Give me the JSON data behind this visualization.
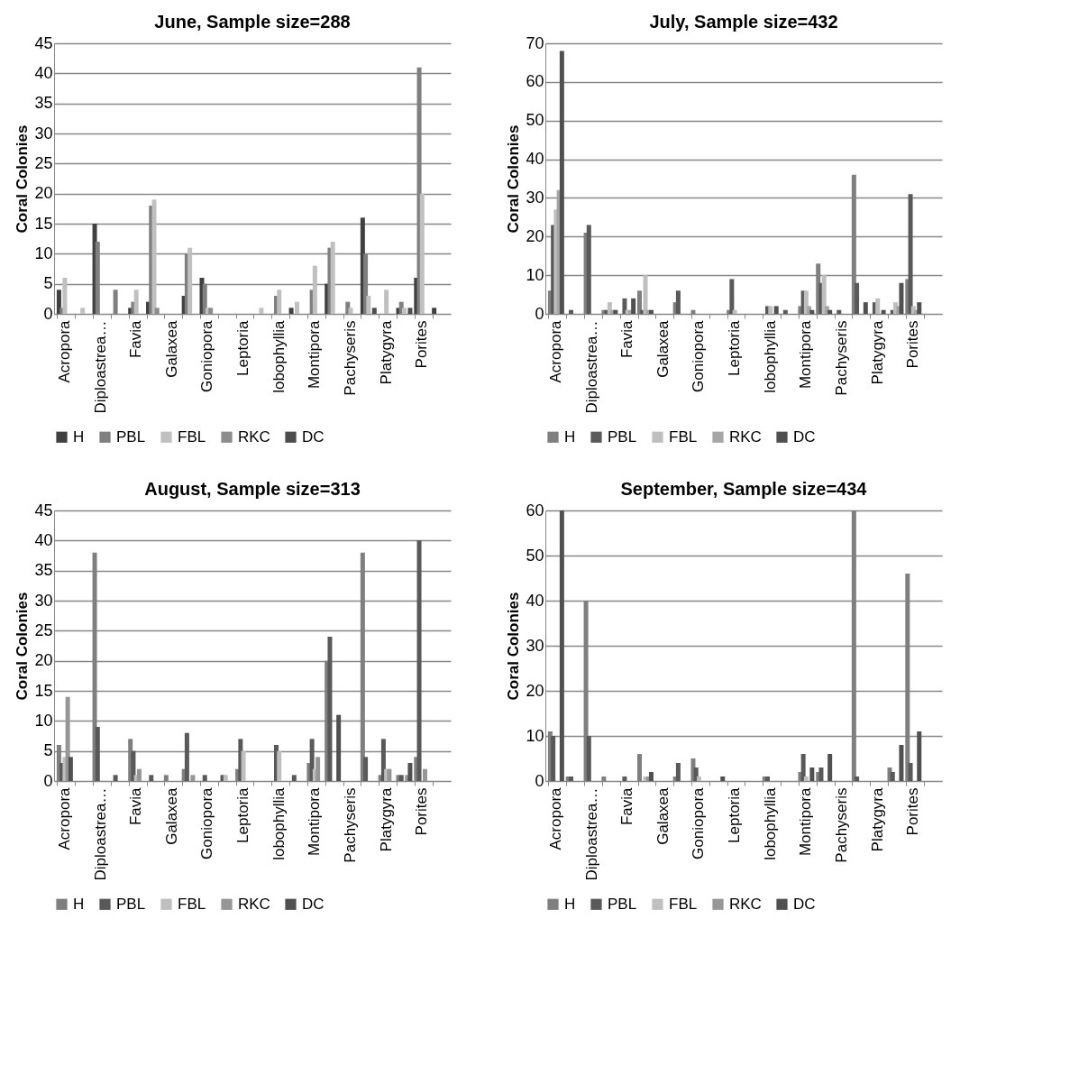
{
  "chart_data": [
    {
      "type": "bar",
      "title": "June, Sample size=288",
      "ylabel": "Coral Colonies",
      "categories": [
        "Acropora",
        null,
        "Diploastrea…",
        null,
        "Favia",
        null,
        "Galaxea",
        null,
        "Goniopora",
        null,
        "Leptoria",
        null,
        "lobophyllia",
        null,
        "Montipora",
        null,
        "Pachyseris",
        null,
        "Platygyra",
        null,
        "Porites",
        null
      ],
      "ylim": [
        0,
        45
      ],
      "yticks": [
        0,
        5,
        10,
        15,
        20,
        25,
        30,
        35,
        40,
        45
      ],
      "grid": "y",
      "legend": "bottom",
      "series": [
        {
          "name": "H",
          "color": "#404040",
          "values": [
            4,
            0,
            15,
            0,
            1,
            2,
            0,
            3,
            6,
            0,
            0,
            0,
            0,
            1,
            0,
            5,
            0,
            16,
            0,
            1,
            6,
            1
          ]
        },
        {
          "name": "PBL",
          "color": "#7f7f7f",
          "values": [
            1,
            0,
            12,
            4,
            2,
            18,
            0,
            10,
            5,
            0,
            0,
            0,
            3,
            0,
            4,
            11,
            2,
            10,
            0,
            2,
            41,
            0
          ]
        },
        {
          "name": "FBL",
          "color": "#c0c0c0",
          "values": [
            6,
            1,
            0,
            0,
            4,
            19,
            0,
            11,
            1,
            0,
            0,
            1,
            4,
            2,
            8,
            12,
            1,
            3,
            4,
            1,
            20,
            0
          ]
        },
        {
          "name": "RKC",
          "color": "#8c8c8c",
          "values": [
            0,
            0,
            0,
            0,
            0,
            1,
            0,
            0,
            1,
            0,
            0,
            0,
            0,
            0,
            0,
            0,
            0,
            0,
            0,
            0,
            0,
            0
          ]
        },
        {
          "name": "DC",
          "color": "#4d4d4d",
          "values": [
            0,
            0,
            0,
            0,
            0,
            0,
            0,
            0,
            0,
            0,
            0,
            0,
            0,
            0,
            0,
            0,
            0,
            1,
            0,
            1,
            0,
            0
          ]
        }
      ]
    },
    {
      "type": "bar",
      "title": "July, Sample size=432",
      "ylabel": "Coral Colonies",
      "categories": [
        "Acropora",
        null,
        "Diploastrea…",
        null,
        "Favia",
        null,
        "Galaxea",
        null,
        "Goniopora",
        null,
        "Leptoria",
        null,
        "lobophyllia",
        null,
        "Montipora",
        null,
        "Pachyseris",
        null,
        "Platygyra",
        null,
        "Porites",
        null
      ],
      "ylim": [
        0,
        70
      ],
      "yticks": [
        0,
        10,
        20,
        30,
        40,
        50,
        60,
        70
      ],
      "grid": "y",
      "legend": "bottom",
      "series": [
        {
          "name": "H",
          "color": "#7f7f7f",
          "values": [
            6,
            0,
            21,
            1,
            0,
            6,
            0,
            3,
            1,
            0,
            1,
            0,
            0,
            0,
            2,
            13,
            0,
            36,
            0,
            0,
            9,
            0
          ]
        },
        {
          "name": "PBL",
          "color": "#595959",
          "values": [
            23,
            1,
            23,
            1,
            4,
            1,
            0,
            6,
            0,
            0,
            9,
            0,
            2,
            1,
            6,
            8,
            1,
            8,
            3,
            1,
            31,
            0
          ]
        },
        {
          "name": "FBL",
          "color": "#bfbfbf",
          "values": [
            27,
            0,
            0,
            3,
            1,
            10,
            0,
            0,
            0,
            0,
            1,
            0,
            2,
            0,
            6,
            10,
            0,
            0,
            4,
            3,
            2,
            0
          ]
        },
        {
          "name": "RKC",
          "color": "#a6a6a6",
          "values": [
            32,
            0,
            0,
            1,
            1,
            1,
            0,
            0,
            0,
            0,
            0,
            0,
            0,
            0,
            2,
            2,
            0,
            0,
            0,
            2,
            1,
            0
          ]
        },
        {
          "name": "DC",
          "color": "#505050",
          "values": [
            68,
            0,
            0,
            1,
            4,
            1,
            0,
            0,
            0,
            0,
            0,
            0,
            2,
            0,
            1,
            1,
            0,
            3,
            1,
            8,
            3,
            0
          ]
        }
      ]
    },
    {
      "type": "bar",
      "title": "August, Sample size=313",
      "ylabel": "Coral Colonies",
      "categories": [
        "Acropora",
        null,
        "Diploastrea…",
        null,
        "Favia",
        null,
        "Galaxea",
        null,
        "Goniopora",
        null,
        "Leptoria",
        null,
        "lobophyllia",
        null,
        "Montipora",
        null,
        "Pachyseris",
        null,
        "Platygyra",
        null,
        "Porites",
        null
      ],
      "ylim": [
        0,
        45
      ],
      "yticks": [
        0,
        5,
        10,
        15,
        20,
        25,
        30,
        35,
        40,
        45
      ],
      "grid": "y",
      "legend": "bottom",
      "series": [
        {
          "name": "H",
          "color": "#7f7f7f",
          "values": [
            6,
            0,
            38,
            0,
            7,
            0,
            1,
            2,
            0,
            0,
            2,
            0,
            0,
            0,
            3,
            20,
            0,
            38,
            1,
            1,
            4,
            0
          ]
        },
        {
          "name": "PBL",
          "color": "#595959",
          "values": [
            3,
            0,
            9,
            1,
            5,
            1,
            0,
            8,
            1,
            1,
            7,
            0,
            6,
            1,
            7,
            24,
            0,
            4,
            7,
            1,
            40,
            0
          ]
        },
        {
          "name": "FBL",
          "color": "#bfbfbf",
          "values": [
            4,
            0,
            0,
            0,
            1,
            0,
            0,
            0,
            0,
            1,
            5,
            0,
            5,
            0,
            2,
            0,
            0,
            0,
            2,
            0,
            0,
            0
          ]
        },
        {
          "name": "RKC",
          "color": "#969696",
          "values": [
            14,
            0,
            0,
            0,
            2,
            0,
            0,
            1,
            0,
            0,
            0,
            0,
            0,
            0,
            4,
            0,
            0,
            0,
            2,
            1,
            2,
            0
          ]
        },
        {
          "name": "DC",
          "color": "#505050",
          "values": [
            4,
            0,
            0,
            0,
            0,
            0,
            0,
            0,
            0,
            0,
            0,
            0,
            0,
            0,
            0,
            11,
            0,
            0,
            0,
            3,
            0,
            0
          ]
        }
      ]
    },
    {
      "type": "bar",
      "title": "September, Sample size=434",
      "ylabel": "Coral Colonies",
      "categories": [
        "Acropora",
        null,
        "Diploastrea…",
        null,
        "Favia",
        null,
        "Galaxea",
        null,
        "Goniopora",
        null,
        "Leptoria",
        null,
        "lobophyllia",
        null,
        "Montipora",
        null,
        "Pachyseris",
        null,
        "Platygyra",
        null,
        "Porites",
        null
      ],
      "ylim": [
        0,
        60
      ],
      "yticks": [
        0,
        10,
        20,
        30,
        40,
        50,
        60
      ],
      "grid": "y",
      "legend": "bottom",
      "series": [
        {
          "name": "H",
          "color": "#7f7f7f",
          "values": [
            11,
            1,
            40,
            1,
            0,
            6,
            0,
            1,
            5,
            0,
            0,
            0,
            1,
            0,
            2,
            2,
            0,
            60,
            0,
            3,
            46,
            0
          ]
        },
        {
          "name": "PBL",
          "color": "#595959",
          "values": [
            10,
            1,
            10,
            0,
            1,
            0,
            0,
            4,
            3,
            0,
            0,
            0,
            1,
            0,
            6,
            3,
            0,
            1,
            0,
            2,
            4,
            0
          ]
        },
        {
          "name": "FBL",
          "color": "#bfbfbf",
          "values": [
            0,
            0,
            0,
            0,
            0,
            1,
            0,
            0,
            1,
            0,
            0,
            0,
            0,
            0,
            1,
            0,
            0,
            0,
            0,
            0,
            0,
            0
          ]
        },
        {
          "name": "RKC",
          "color": "#969696",
          "values": [
            0,
            0,
            0,
            0,
            0,
            1,
            0,
            0,
            0,
            0,
            0,
            0,
            0,
            0,
            0,
            0,
            0,
            0,
            0,
            0,
            0,
            0
          ]
        },
        {
          "name": "DC",
          "color": "#505050",
          "values": [
            60,
            0,
            0,
            0,
            0,
            2,
            0,
            0,
            0,
            1,
            0,
            0,
            0,
            0,
            3,
            6,
            0,
            0,
            0,
            8,
            11,
            0
          ]
        }
      ]
    }
  ]
}
